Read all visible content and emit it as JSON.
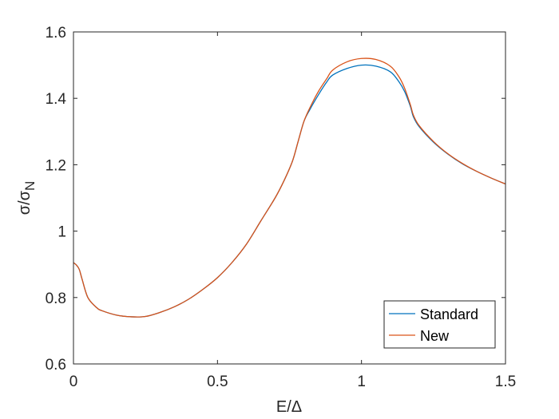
{
  "chart_data": {
    "type": "line",
    "title": "",
    "xlabel": "E/Δ",
    "ylabel_main": "σ/σ",
    "ylabel_sub": "N",
    "xlim": [
      0,
      1.5
    ],
    "ylim": [
      0.6,
      1.6
    ],
    "xticks": [
      0,
      0.5,
      1,
      1.5
    ],
    "xtick_labels": [
      "0",
      "0.5",
      "1",
      "1.5"
    ],
    "yticks": [
      0.6,
      0.8,
      1,
      1.2,
      1.4,
      1.6
    ],
    "ytick_labels": [
      "0.6",
      "0.8",
      "1",
      "1.2",
      "1.4",
      "1.6"
    ],
    "grid": false,
    "legend_position": "bottom-right",
    "series": [
      {
        "name": "Standard",
        "color": "#0072BD",
        "x": [
          0,
          0.01,
          0.02,
          0.03,
          0.05,
          0.08,
          0.1,
          0.15,
          0.2,
          0.25,
          0.3,
          0.35,
          0.4,
          0.45,
          0.5,
          0.55,
          0.6,
          0.65,
          0.7,
          0.73,
          0.76,
          0.78,
          0.8,
          0.82,
          0.85,
          0.88,
          0.9,
          0.95,
          1.0,
          1.05,
          1.1,
          1.13,
          1.15,
          1.17,
          1.18,
          1.2,
          1.25,
          1.3,
          1.35,
          1.4,
          1.45,
          1.5
        ],
        "y": [
          0.905,
          0.898,
          0.885,
          0.855,
          0.8,
          0.77,
          0.76,
          0.747,
          0.742,
          0.743,
          0.755,
          0.772,
          0.795,
          0.825,
          0.86,
          0.905,
          0.96,
          1.03,
          1.1,
          1.15,
          1.21,
          1.27,
          1.33,
          1.365,
          1.41,
          1.45,
          1.47,
          1.49,
          1.5,
          1.497,
          1.48,
          1.45,
          1.42,
          1.375,
          1.345,
          1.315,
          1.268,
          1.232,
          1.203,
          1.18,
          1.16,
          1.142
        ]
      },
      {
        "name": "New",
        "color": "#D95319",
        "x": [
          0,
          0.01,
          0.02,
          0.03,
          0.05,
          0.08,
          0.1,
          0.15,
          0.2,
          0.25,
          0.3,
          0.35,
          0.4,
          0.45,
          0.5,
          0.55,
          0.6,
          0.65,
          0.7,
          0.73,
          0.76,
          0.78,
          0.8,
          0.82,
          0.85,
          0.88,
          0.9,
          0.95,
          1.0,
          1.05,
          1.1,
          1.13,
          1.15,
          1.17,
          1.18,
          1.2,
          1.25,
          1.3,
          1.35,
          1.4,
          1.45,
          1.5
        ],
        "y": [
          0.905,
          0.898,
          0.885,
          0.855,
          0.8,
          0.77,
          0.76,
          0.747,
          0.742,
          0.743,
          0.755,
          0.772,
          0.795,
          0.825,
          0.86,
          0.905,
          0.96,
          1.03,
          1.1,
          1.15,
          1.21,
          1.27,
          1.33,
          1.37,
          1.42,
          1.46,
          1.485,
          1.51,
          1.52,
          1.517,
          1.497,
          1.465,
          1.43,
          1.38,
          1.35,
          1.318,
          1.27,
          1.233,
          1.204,
          1.18,
          1.16,
          1.142
        ]
      }
    ]
  }
}
